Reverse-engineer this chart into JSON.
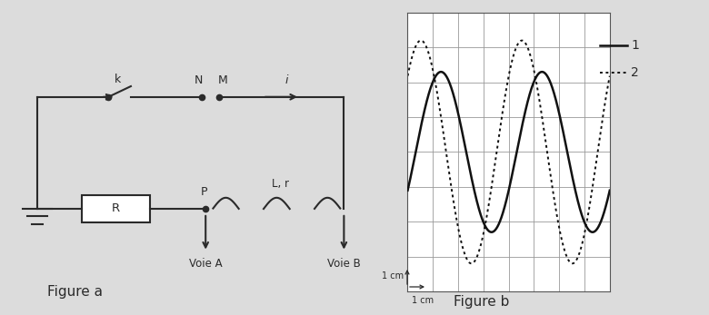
{
  "bg_color": "#dcdcdc",
  "fig_a_label": "Figure a",
  "fig_b_label": "Figure b",
  "legend_1": "1",
  "legend_2": "2",
  "grid_cols": 8,
  "grid_rows": 8,
  "wave1_amplitude": 2.3,
  "wave1_phase": -0.5,
  "wave2_amplitude": 3.2,
  "wave2_phase": 0.75,
  "wave_period": 4.0,
  "wave1_color": "#111111",
  "wave2_color": "#111111",
  "grid_color": "#999999",
  "circuit_color": "#2a2a2a",
  "text_color": "#2a2a2a",
  "scale_label_x": "1 cm",
  "scale_label_y": "1 cm"
}
